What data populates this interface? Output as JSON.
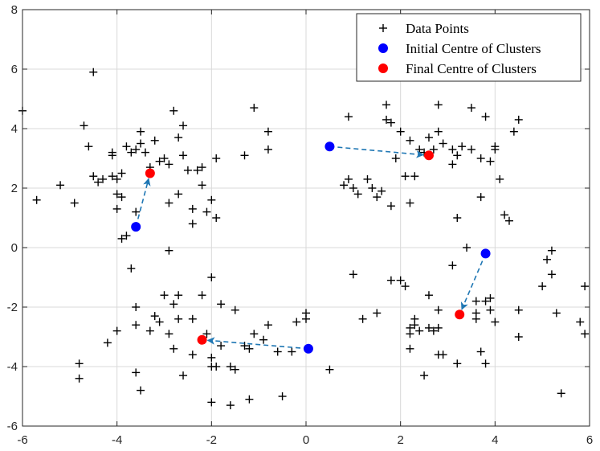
{
  "chart_data": {
    "type": "scatter",
    "title": "",
    "xlabel": "",
    "ylabel": "",
    "xlim": [
      -6,
      6
    ],
    "ylim": [
      -6,
      8
    ],
    "xticks": [
      -6,
      -4,
      -2,
      0,
      2,
      4,
      6
    ],
    "yticks": [
      -6,
      -4,
      -2,
      0,
      2,
      4,
      6,
      8
    ],
    "grid": true,
    "legend_position": "top-right",
    "legend": [
      "Data Points",
      "Initial Centre of Clusters",
      "Final Centre of Clusters"
    ],
    "colors": {
      "data_points": "#000000",
      "initial_centre": "#0000ff",
      "final_centre": "#ff0000",
      "arrow": "#1f77b4",
      "grid": "#d9d9d9",
      "axis": "#262626"
    },
    "series": [
      {
        "name": "Data Points",
        "marker": "plus",
        "points": [
          [
            -6.0,
            4.6
          ],
          [
            -5.7,
            1.6
          ],
          [
            -5.2,
            2.1
          ],
          [
            -4.9,
            1.5
          ],
          [
            -4.7,
            4.1
          ],
          [
            -4.6,
            3.4
          ],
          [
            -4.5,
            5.9
          ],
          [
            -4.5,
            2.4
          ],
          [
            -4.4,
            2.2
          ],
          [
            -4.3,
            2.3
          ],
          [
            -4.1,
            2.4
          ],
          [
            -4.1,
            3.1
          ],
          [
            -4.1,
            3.2
          ],
          [
            -4.0,
            2.3
          ],
          [
            -4.0,
            1.8
          ],
          [
            -4.0,
            1.3
          ],
          [
            -3.9,
            1.7
          ],
          [
            -3.9,
            2.5
          ],
          [
            -3.9,
            0.3
          ],
          [
            -3.8,
            0.4
          ],
          [
            -3.8,
            3.4
          ],
          [
            -3.7,
            3.2
          ],
          [
            -3.6,
            3.3
          ],
          [
            -3.5,
            3.5
          ],
          [
            -3.5,
            3.9
          ],
          [
            -3.4,
            3.2
          ],
          [
            -3.3,
            2.7
          ],
          [
            -3.2,
            3.6
          ],
          [
            -3.1,
            2.9
          ],
          [
            -3.0,
            3.0
          ],
          [
            -2.9,
            1.5
          ],
          [
            -2.9,
            2.8
          ],
          [
            -2.8,
            4.6
          ],
          [
            -2.7,
            3.7
          ],
          [
            -2.7,
            1.8
          ],
          [
            -2.6,
            4.1
          ],
          [
            -2.6,
            3.1
          ],
          [
            -2.5,
            2.6
          ],
          [
            -2.4,
            1.3
          ],
          [
            -2.4,
            0.8
          ],
          [
            -2.3,
            2.6
          ],
          [
            -2.2,
            2.7
          ],
          [
            -2.2,
            2.1
          ],
          [
            -2.1,
            1.2
          ],
          [
            -2.0,
            1.6
          ],
          [
            -1.9,
            1.0
          ],
          [
            -1.9,
            3.0
          ],
          [
            -2.9,
            -0.1
          ],
          [
            -3.6,
            1.2
          ],
          [
            -4.8,
            -3.9
          ],
          [
            -4.8,
            -4.4
          ],
          [
            -4.2,
            -3.2
          ],
          [
            -4.0,
            -2.8
          ],
          [
            -3.7,
            -0.7
          ],
          [
            -3.6,
            -2.0
          ],
          [
            -3.6,
            -2.6
          ],
          [
            -3.6,
            -4.2
          ],
          [
            -3.5,
            -4.8
          ],
          [
            -3.3,
            -2.8
          ],
          [
            -3.2,
            -2.3
          ],
          [
            -3.1,
            -2.5
          ],
          [
            -3.0,
            -1.6
          ],
          [
            -2.9,
            -2.9
          ],
          [
            -2.8,
            -3.4
          ],
          [
            -2.8,
            -1.9
          ],
          [
            -2.7,
            -1.6
          ],
          [
            -2.7,
            -2.4
          ],
          [
            -2.6,
            -4.3
          ],
          [
            -2.4,
            -2.4
          ],
          [
            -2.4,
            -3.6
          ],
          [
            -2.2,
            -1.6
          ],
          [
            -2.1,
            -2.9
          ],
          [
            -2.0,
            -3.7
          ],
          [
            -2.0,
            -1.0
          ],
          [
            -1.9,
            -4.0
          ],
          [
            -1.8,
            -1.9
          ],
          [
            -1.8,
            -3.3
          ],
          [
            -1.6,
            -4.0
          ],
          [
            -1.5,
            -2.1
          ],
          [
            -1.5,
            -4.1
          ],
          [
            -1.3,
            -3.3
          ],
          [
            -1.2,
            -3.4
          ],
          [
            -1.1,
            -2.9
          ],
          [
            -0.9,
            -3.1
          ],
          [
            -0.8,
            -2.6
          ],
          [
            -0.6,
            -3.5
          ],
          [
            -0.5,
            -5.0
          ],
          [
            -0.3,
            -3.5
          ],
          [
            -0.2,
            -2.5
          ],
          [
            0.0,
            -2.2
          ],
          [
            0.0,
            -2.4
          ],
          [
            -1.6,
            -5.3
          ],
          [
            -2.0,
            -5.2
          ],
          [
            -1.2,
            -5.1
          ],
          [
            -0.8,
            3.9
          ],
          [
            -0.8,
            3.3
          ],
          [
            -1.1,
            4.7
          ],
          [
            -1.3,
            3.1
          ],
          [
            -2.0,
            -4.0
          ],
          [
            0.5,
            -4.1
          ],
          [
            1.0,
            -0.9
          ],
          [
            0.8,
            2.1
          ],
          [
            0.9,
            2.3
          ],
          [
            1.0,
            2.0
          ],
          [
            1.1,
            1.8
          ],
          [
            1.3,
            2.3
          ],
          [
            1.4,
            2.0
          ],
          [
            1.5,
            1.7
          ],
          [
            1.5,
            -2.2
          ],
          [
            1.6,
            1.9
          ],
          [
            1.7,
            4.8
          ],
          [
            1.7,
            4.3
          ],
          [
            1.8,
            1.4
          ],
          [
            1.8,
            4.2
          ],
          [
            1.9,
            3.0
          ],
          [
            2.0,
            3.9
          ],
          [
            2.1,
            2.4
          ],
          [
            2.2,
            1.5
          ],
          [
            2.2,
            3.6
          ],
          [
            2.3,
            2.4
          ],
          [
            2.4,
            3.3
          ],
          [
            2.5,
            3.2
          ],
          [
            2.6,
            3.7
          ],
          [
            2.7,
            3.3
          ],
          [
            2.8,
            3.9
          ],
          [
            2.8,
            4.8
          ],
          [
            2.9,
            3.5
          ],
          [
            3.1,
            2.8
          ],
          [
            3.2,
            3.1
          ],
          [
            3.3,
            3.4
          ],
          [
            3.5,
            3.3
          ],
          [
            3.5,
            4.7
          ],
          [
            3.7,
            3.0
          ],
          [
            3.7,
            1.7
          ],
          [
            3.8,
            4.4
          ],
          [
            3.9,
            2.9
          ],
          [
            4.0,
            3.3
          ],
          [
            4.0,
            3.4
          ],
          [
            4.1,
            2.3
          ],
          [
            4.2,
            1.1
          ],
          [
            4.3,
            0.9
          ],
          [
            4.4,
            3.9
          ],
          [
            4.5,
            4.3
          ],
          [
            3.2,
            1.0
          ],
          [
            0.9,
            4.4
          ],
          [
            3.1,
            3.3
          ],
          [
            1.8,
            -1.1
          ],
          [
            2.1,
            -1.3
          ],
          [
            2.2,
            -2.7
          ],
          [
            2.2,
            -2.9
          ],
          [
            2.2,
            -3.4
          ],
          [
            2.3,
            -2.4
          ],
          [
            2.3,
            -2.6
          ],
          [
            2.4,
            -2.8
          ],
          [
            2.5,
            -4.3
          ],
          [
            2.6,
            -2.7
          ],
          [
            2.6,
            -1.6
          ],
          [
            2.7,
            -2.8
          ],
          [
            2.8,
            -3.6
          ],
          [
            2.8,
            -2.7
          ],
          [
            2.8,
            -2.1
          ],
          [
            3.1,
            -0.6
          ],
          [
            3.2,
            -3.9
          ],
          [
            3.4,
            0.0
          ],
          [
            3.6,
            -2.2
          ],
          [
            3.6,
            -1.8
          ],
          [
            3.6,
            -2.4
          ],
          [
            3.8,
            -1.8
          ],
          [
            3.8,
            -3.9
          ],
          [
            3.9,
            -2.1
          ],
          [
            3.9,
            -1.7
          ],
          [
            4.0,
            -2.5
          ],
          [
            4.5,
            -2.1
          ],
          [
            4.5,
            -3.0
          ],
          [
            5.0,
            -1.3
          ],
          [
            5.1,
            -0.4
          ],
          [
            5.2,
            -0.1
          ],
          [
            5.2,
            -0.9
          ],
          [
            5.3,
            -2.2
          ],
          [
            5.4,
            -4.9
          ],
          [
            5.8,
            -2.5
          ],
          [
            5.9,
            -1.3
          ],
          [
            5.9,
            -2.9
          ],
          [
            2.9,
            -3.6
          ],
          [
            3.7,
            -3.5
          ],
          [
            2.0,
            -1.1
          ],
          [
            1.2,
            -2.4
          ]
        ]
      },
      {
        "name": "Initial Centre of Clusters",
        "marker": "filled-circle",
        "points": [
          [
            -3.6,
            0.7
          ],
          [
            0.5,
            3.4
          ],
          [
            0.05,
            -3.4
          ],
          [
            3.8,
            -0.2
          ]
        ]
      },
      {
        "name": "Final Centre of Clusters",
        "marker": "filled-circle",
        "points": [
          [
            -3.3,
            2.5
          ],
          [
            2.6,
            3.1
          ],
          [
            -2.2,
            -3.1
          ],
          [
            3.25,
            -2.25
          ]
        ]
      }
    ],
    "annotations": [
      {
        "type": "dashed-arrow",
        "from": [
          -3.6,
          0.7
        ],
        "to": [
          -3.3,
          2.5
        ]
      },
      {
        "type": "dashed-arrow",
        "from": [
          0.5,
          3.4
        ],
        "to": [
          2.6,
          3.1
        ]
      },
      {
        "type": "dashed-arrow",
        "from": [
          0.05,
          -3.4
        ],
        "to": [
          -2.2,
          -3.1
        ]
      },
      {
        "type": "dashed-arrow",
        "from": [
          3.8,
          -0.2
        ],
        "to": [
          3.25,
          -2.25
        ]
      }
    ]
  }
}
